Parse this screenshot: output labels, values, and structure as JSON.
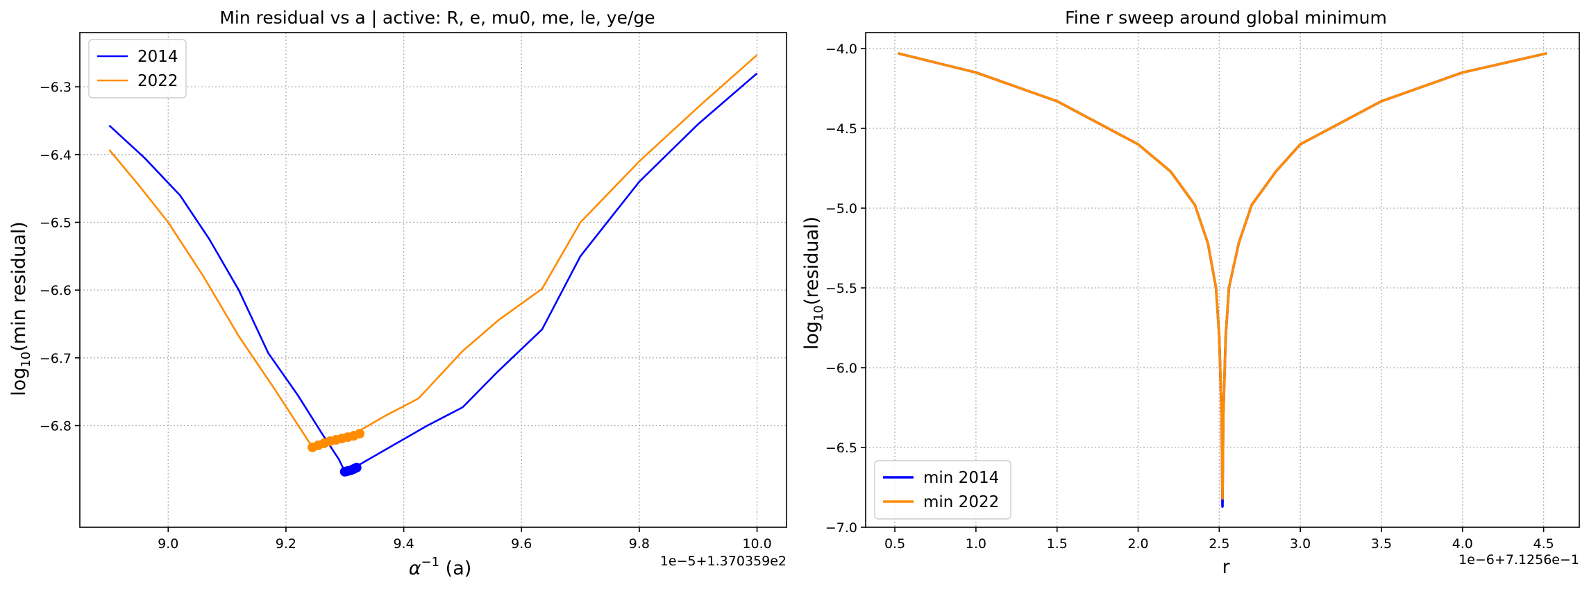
{
  "chart_data": [
    {
      "type": "line",
      "title": "Min residual vs a  |  active: R, e, mu0, me, le, ye/ge",
      "xlabel_base": "α",
      "xlabel_sup": "−1",
      "xlabel_suffix": " (a)",
      "ylabel_base": "log",
      "ylabel_sub": "10",
      "ylabel_suffix": "(min residual)",
      "x_offset_text": "1e−5+1.370359e2",
      "xlim": [
        8.85,
        10.05
      ],
      "ylim": [
        -6.95,
        -6.22
      ],
      "xticks": [
        9.0,
        9.2,
        9.4,
        9.6,
        9.8,
        10.0
      ],
      "xtick_labels": [
        "9.0",
        "9.2",
        "9.4",
        "9.6",
        "9.8",
        "10.0"
      ],
      "yticks": [
        -6.8,
        -6.7,
        -6.6,
        -6.5,
        -6.4,
        -6.3
      ],
      "ytick_labels": [
        "−6.8",
        "−6.7",
        "−6.6",
        "−6.5",
        "−6.4",
        "−6.3"
      ],
      "grid": true,
      "legend_position": "upper-left",
      "series": [
        {
          "name": "2014",
          "color": "#0000ff",
          "x": [
            8.9,
            8.96,
            9.02,
            9.07,
            9.12,
            9.17,
            9.22,
            9.26,
            9.29,
            9.3,
            9.31,
            9.32,
            9.38,
            9.44,
            9.5,
            9.56,
            9.635,
            9.7,
            9.8,
            9.9,
            10.0
          ],
          "y": [
            -6.357,
            -6.405,
            -6.46,
            -6.525,
            -6.6,
            -6.693,
            -6.755,
            -6.81,
            -6.85,
            -6.868,
            -6.865,
            -6.86,
            -6.83,
            -6.8,
            -6.773,
            -6.72,
            -6.658,
            -6.55,
            -6.44,
            -6.355,
            -6.28
          ],
          "markers_x": [
            9.3,
            9.305,
            9.31,
            9.315,
            9.32
          ],
          "markers_y": [
            -6.868,
            -6.867,
            -6.866,
            -6.864,
            -6.862
          ]
        },
        {
          "name": "2022",
          "color": "#ff8c00",
          "x": [
            8.9,
            8.95,
            9.0,
            9.06,
            9.12,
            9.18,
            9.245,
            9.32,
            9.37,
            9.425,
            9.5,
            9.56,
            9.635,
            9.7,
            9.8,
            9.9,
            10.0
          ],
          "y": [
            -6.393,
            -6.445,
            -6.5,
            -6.58,
            -6.668,
            -6.745,
            -6.832,
            -6.81,
            -6.785,
            -6.76,
            -6.69,
            -6.645,
            -6.598,
            -6.5,
            -6.41,
            -6.33,
            -6.253
          ],
          "markers_x": [
            9.245,
            9.255,
            9.265,
            9.275,
            9.285,
            9.295,
            9.305,
            9.315,
            9.325
          ],
          "markers_y": [
            -6.832,
            -6.829,
            -6.826,
            -6.823,
            -6.821,
            -6.819,
            -6.817,
            -6.815,
            -6.812
          ]
        }
      ]
    },
    {
      "type": "line",
      "title": "Fine r sweep around global minimum",
      "xlabel": "r",
      "ylabel_base": "log",
      "ylabel_sub": "10",
      "ylabel_suffix": "(residual)",
      "x_offset_text": "1e−6+7.1256e−1",
      "xlim": [
        0.32,
        4.72
      ],
      "ylim": [
        -7.0,
        -3.9
      ],
      "xticks": [
        0.5,
        1.0,
        1.5,
        2.0,
        2.5,
        3.0,
        3.5,
        4.0,
        4.5
      ],
      "xtick_labels": [
        "0.5",
        "1.0",
        "1.5",
        "2.0",
        "2.5",
        "3.0",
        "3.5",
        "4.0",
        "4.5"
      ],
      "yticks": [
        -7.0,
        -6.5,
        -6.0,
        -5.5,
        -5.0,
        -4.5,
        -4.0
      ],
      "ytick_labels": [
        "−7.0",
        "−6.5",
        "−6.0",
        "−5.5",
        "−5.0",
        "−4.5",
        "−4.0"
      ],
      "grid": true,
      "legend_position": "lower-left",
      "series": [
        {
          "name": "min 2014",
          "color": "#0000ff",
          "x": [
            0.52,
            1.0,
            1.5,
            2.0,
            2.2,
            2.35,
            2.43,
            2.48,
            2.5,
            2.515,
            2.52,
            2.525,
            2.54,
            2.56,
            2.62,
            2.7,
            2.85,
            3.0,
            3.5,
            4.0,
            4.52
          ],
          "y": [
            -4.03,
            -4.15,
            -4.33,
            -4.6,
            -4.77,
            -4.98,
            -5.22,
            -5.5,
            -5.8,
            -6.3,
            -6.87,
            -6.3,
            -5.8,
            -5.5,
            -5.22,
            -4.98,
            -4.77,
            -4.6,
            -4.33,
            -4.15,
            -4.03
          ]
        },
        {
          "name": "min 2022",
          "color": "#ff8c00",
          "x": [
            0.52,
            1.0,
            1.5,
            2.0,
            2.2,
            2.35,
            2.43,
            2.48,
            2.5,
            2.515,
            2.52,
            2.525,
            2.54,
            2.56,
            2.62,
            2.7,
            2.85,
            3.0,
            3.5,
            4.0,
            4.52
          ],
          "y": [
            -4.03,
            -4.15,
            -4.33,
            -4.6,
            -4.77,
            -4.98,
            -5.22,
            -5.5,
            -5.8,
            -6.3,
            -6.82,
            -6.3,
            -5.8,
            -5.5,
            -5.22,
            -4.98,
            -4.77,
            -4.6,
            -4.33,
            -4.15,
            -4.03
          ]
        }
      ]
    }
  ]
}
